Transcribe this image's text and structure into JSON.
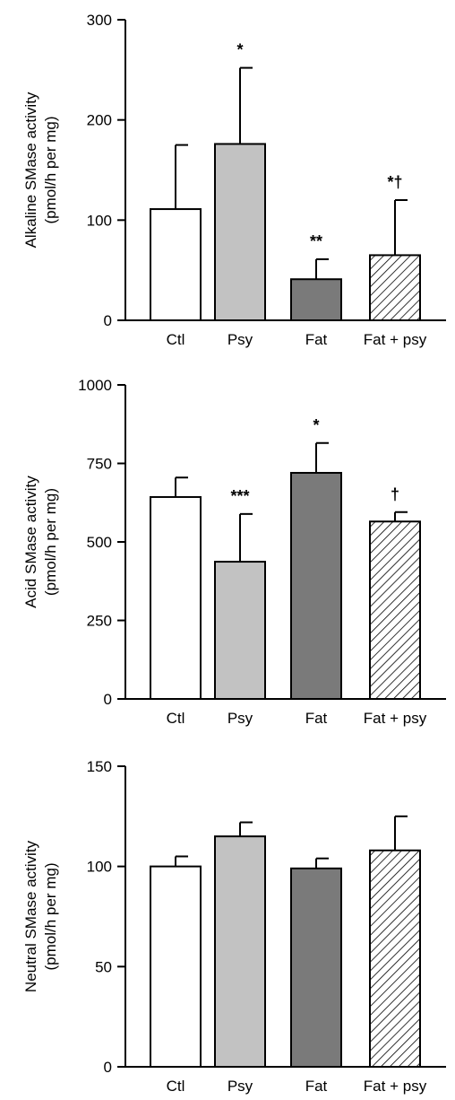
{
  "chart_data": [
    {
      "type": "bar",
      "ylabel_line1": "Alkaline SMase activity",
      "ylabel_line2": "(pmol/h per mg)",
      "categories": [
        "Ctl",
        "Psy",
        "Fat",
        "Fat + psy"
      ],
      "values": [
        111,
        176,
        41,
        65
      ],
      "errors": [
        64,
        76,
        20,
        55
      ],
      "annotations": [
        "",
        "*",
        "**",
        "*†"
      ],
      "ylim": [
        0,
        300
      ],
      "yticks": [
        0,
        100,
        200,
        300
      ]
    },
    {
      "type": "bar",
      "ylabel_line1": "Acid SMase activity",
      "ylabel_line2": "(pmol/h per mg)",
      "categories": [
        "Ctl",
        "Psy",
        "Fat",
        "Fat + psy"
      ],
      "values": [
        643,
        437,
        720,
        565
      ],
      "errors": [
        62,
        152,
        95,
        30
      ],
      "annotations": [
        "",
        "***",
        "*",
        "†"
      ],
      "ylim": [
        0,
        1000
      ],
      "yticks": [
        0,
        250,
        500,
        750,
        1000
      ]
    },
    {
      "type": "bar",
      "ylabel_line1": "Neutral SMase activity",
      "ylabel_line2": "(pmol/h per mg)",
      "categories": [
        "Ctl",
        "Psy",
        "Fat",
        "Fat + psy"
      ],
      "values": [
        100,
        115,
        99,
        108
      ],
      "errors": [
        5,
        7,
        5,
        17
      ],
      "annotations": [
        "",
        "",
        "",
        ""
      ],
      "ylim": [
        0,
        150
      ],
      "yticks": [
        0,
        50,
        100,
        150
      ]
    }
  ],
  "bar_styles": [
    {
      "fill": "#ffffff",
      "pattern": "none"
    },
    {
      "fill": "#c2c2c2",
      "pattern": "none"
    },
    {
      "fill": "#7a7a7a",
      "pattern": "none"
    },
    {
      "fill": "#ffffff",
      "pattern": "diagonal-hatch"
    }
  ]
}
